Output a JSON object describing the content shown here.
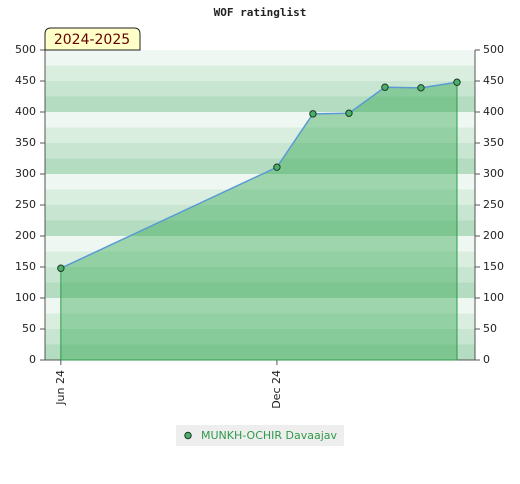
{
  "chart_data": {
    "type": "line",
    "title": "WOF ratinglist",
    "badge": "2024-2025",
    "x": [
      0,
      6,
      7,
      8,
      9,
      10,
      11
    ],
    "xlim": [
      -0.44,
      11.5
    ],
    "xticks": [
      {
        "value": 0,
        "label": "Jun 24"
      },
      {
        "value": 6,
        "label": "Dec 24"
      }
    ],
    "series": [
      {
        "name": "MUNKH-OCHIR Davaajav",
        "color": "#5b9bd5",
        "values": [
          148,
          311,
          397,
          398,
          440,
          439,
          448
        ]
      }
    ],
    "ylim": [
      0,
      500
    ],
    "yticks": [
      0,
      50,
      100,
      150,
      200,
      250,
      300,
      350,
      400,
      450,
      500
    ],
    "y2lim": [
      0,
      500
    ],
    "y2ticks": [
      0,
      50,
      100,
      150,
      200,
      250,
      300,
      350,
      400,
      450,
      500
    ]
  }
}
